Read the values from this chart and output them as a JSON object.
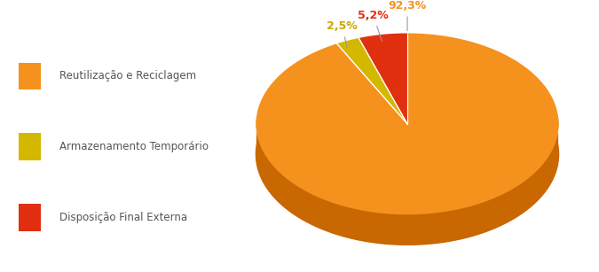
{
  "labels": [
    "Reutilização e Reciclagem",
    "Armazenamento Temporário",
    "Disposição Final Externa"
  ],
  "values": [
    92.3,
    2.5,
    5.2
  ],
  "colors": [
    "#F5921E",
    "#D4B800",
    "#E03010"
  ],
  "side_colors": [
    "#C96800",
    "#A08800",
    "#A02000"
  ],
  "pct_labels": [
    "92,3%",
    "2,5%",
    "5,2%"
  ],
  "pct_colors": [
    "#F5921E",
    "#C8A800",
    "#E03010"
  ],
  "legend_colors": [
    "#F5921E",
    "#D4B800",
    "#E03010"
  ],
  "bg_color": "#ffffff",
  "label_fontsize": 9,
  "legend_fontsize": 8.5,
  "legend_text_color": "#555555"
}
